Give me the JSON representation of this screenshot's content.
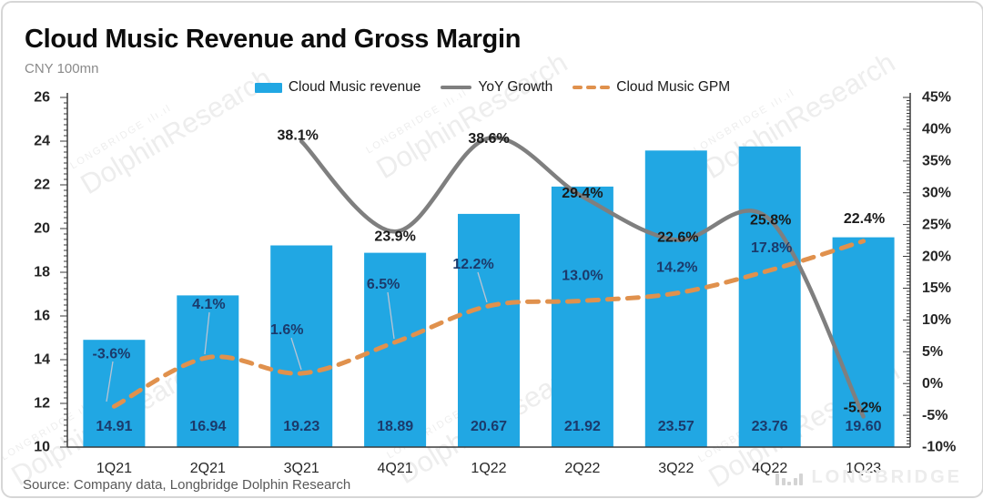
{
  "header": {
    "title": "Cloud Music Revenue and Gross Margin",
    "unit_label": "CNY 100mn"
  },
  "legend": [
    {
      "label": "Cloud Music revenue",
      "type": "bar",
      "color": "#21a7e3"
    },
    {
      "label": "YoY Growth",
      "type": "line",
      "color": "#7f7f7f"
    },
    {
      "label": "Cloud Music GPM",
      "type": "dash",
      "color": "#e0914d"
    }
  ],
  "chart_data": {
    "type": "combo",
    "title": "Cloud Music Revenue and Gross Margin",
    "unit": "CNY 100mn",
    "categories": [
      "1Q21",
      "2Q21",
      "3Q21",
      "4Q21",
      "1Q22",
      "2Q22",
      "3Q22",
      "4Q22",
      "1Q23"
    ],
    "series": [
      {
        "name": "Cloud Music revenue",
        "type": "bar",
        "axis": "left",
        "color": "#21a7e3",
        "values": [
          14.91,
          16.94,
          19.23,
          18.89,
          20.67,
          21.92,
          23.57,
          23.76,
          19.6
        ],
        "labels": [
          "14.91",
          "16.94",
          "19.23",
          "18.89",
          "20.67",
          "21.92",
          "23.57",
          "23.76",
          "19.60"
        ],
        "label_color": "#1b3a6b"
      },
      {
        "name": "YoY Growth",
        "type": "line",
        "axis": "right",
        "color": "#7f7f7f",
        "values": [
          null,
          null,
          38.1,
          23.9,
          38.6,
          29.4,
          22.6,
          25.8,
          -5.2
        ],
        "labels": [
          null,
          null,
          "38.1%",
          "23.9%",
          "38.6%",
          "29.4%",
          "22.6%",
          "25.8%",
          "-5.2%"
        ],
        "label_color": "#1a1a1a"
      },
      {
        "name": "Cloud Music GPM",
        "type": "dashed-line",
        "axis": "right",
        "color": "#e0914d",
        "values": [
          -3.6,
          4.1,
          1.6,
          6.5,
          12.2,
          13.0,
          14.2,
          17.8,
          22.4
        ],
        "labels": [
          "-3.6%",
          "4.1%",
          "1.6%",
          "6.5%",
          "12.2%",
          "13.0%",
          "14.2%",
          "17.8%",
          "22.4%"
        ],
        "label_color": "#1b3a6b",
        "last_label_color": "#1a1a1a"
      }
    ],
    "left_axis": {
      "min": 10,
      "max": 26,
      "step": 2,
      "tick_labels": [
        "26",
        "24",
        "22",
        "20",
        "18",
        "16",
        "14",
        "12",
        "10"
      ]
    },
    "right_axis": {
      "min": -10,
      "max": 45,
      "step": 5,
      "tick_labels": [
        "45%",
        "40%",
        "35%",
        "30%",
        "25%",
        "20%",
        "15%",
        "10%",
        "5%",
        "0%",
        "-5%",
        "-10%"
      ]
    },
    "legend_position": "top",
    "grid": false
  },
  "footer": {
    "source": "Source: Company data, Longbridge Dolphin Research",
    "logo_text": "LONGBRIDGE"
  },
  "watermark": {
    "brand": "LONGBRIDGE",
    "wave": "ılı.ıl",
    "name": "DolphinResearch"
  }
}
